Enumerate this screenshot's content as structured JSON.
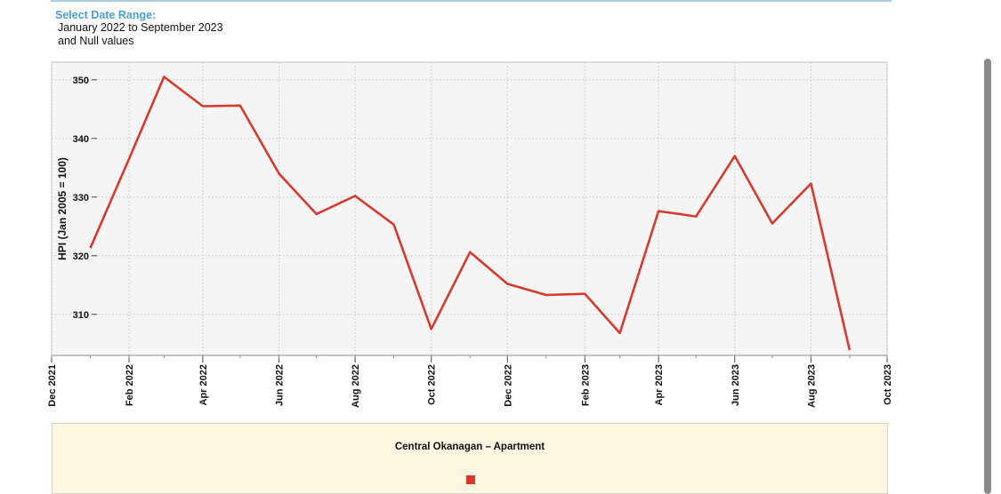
{
  "header": {
    "title": "Select Date Range:",
    "range": "January 2022 to September 2023",
    "note": "and Null values"
  },
  "colors": {
    "line": "#d63a2f",
    "title_blue": "#4a9fd0",
    "plot_bg": "#f5f5f5",
    "legend_bg": "#fdf6e0"
  },
  "legend": {
    "title": "Central Okanagan – Apartment"
  },
  "chart_data": {
    "type": "line",
    "title": "",
    "ylabel": "HPI (Jan 2005 = 100)",
    "xlabel": "",
    "ylim": [
      303,
      353
    ],
    "yticks": [
      310,
      320,
      330,
      340,
      350
    ],
    "grid": true,
    "x_ticks": [
      {
        "label": "Dec 2021",
        "date": "2021-12-01"
      },
      {
        "label": "Feb 2022",
        "date": "2022-02-01"
      },
      {
        "label": "Apr 2022",
        "date": "2022-04-01"
      },
      {
        "label": "Jun 2022",
        "date": "2022-06-01"
      },
      {
        "label": "Aug 2022",
        "date": "2022-08-01"
      },
      {
        "label": "Oct 2022",
        "date": "2022-10-01"
      },
      {
        "label": "Dec 2022",
        "date": "2022-12-01"
      },
      {
        "label": "Feb 2023",
        "date": "2023-02-01"
      },
      {
        "label": "Apr 2023",
        "date": "2023-04-01"
      },
      {
        "label": "Jun 2023",
        "date": "2023-06-01"
      },
      {
        "label": "Aug 2023",
        "date": "2023-08-01"
      },
      {
        "label": "Oct 2023",
        "date": "2023-10-01"
      }
    ],
    "series": [
      {
        "name": "Central Okanagan – Apartment",
        "x": [
          "2022-01",
          "2022-02",
          "2022-03",
          "2022-04",
          "2022-05",
          "2022-06",
          "2022-07",
          "2022-08",
          "2022-09",
          "2022-10",
          "2022-11",
          "2022-12",
          "2023-01",
          "2023-02",
          "2023-03",
          "2023-04",
          "2023-05",
          "2023-06",
          "2023-07",
          "2023-08",
          "2023-09"
        ],
        "values": [
          321.3,
          336.5,
          350.5,
          345.5,
          345.6,
          334.0,
          327.1,
          330.2,
          325.3,
          307.5,
          320.6,
          315.2,
          313.3,
          313.5,
          306.8,
          327.6,
          326.7,
          337.0,
          325.5,
          332.3,
          303.9
        ]
      }
    ]
  }
}
